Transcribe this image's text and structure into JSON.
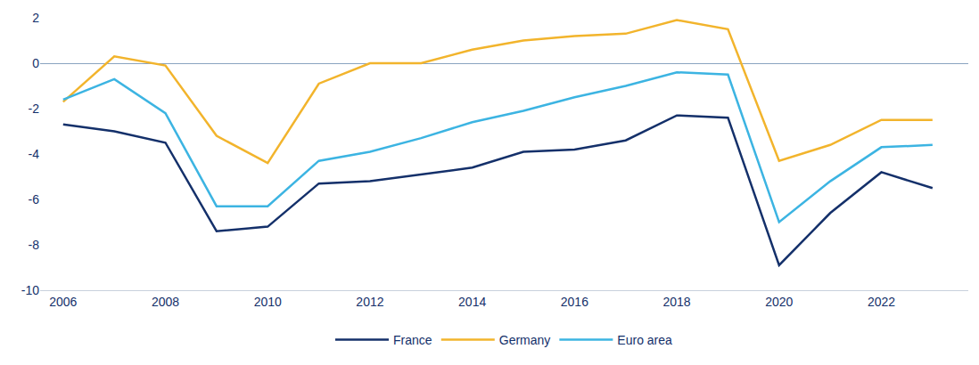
{
  "chart_data": {
    "type": "line",
    "x": [
      2006,
      2007,
      2008,
      2009,
      2010,
      2011,
      2012,
      2013,
      2014,
      2015,
      2016,
      2017,
      2018,
      2019,
      2020,
      2021,
      2022,
      2023
    ],
    "series": [
      {
        "name": "France",
        "color": "#14306a",
        "values": [
          -2.7,
          -3.0,
          -3.5,
          -7.4,
          -7.2,
          -5.3,
          -5.2,
          -4.9,
          -4.6,
          -3.9,
          -3.8,
          -3.4,
          -2.3,
          -2.4,
          -8.9,
          -6.6,
          -4.8,
          -5.5
        ]
      },
      {
        "name": "Germany",
        "color": "#f2b42c",
        "values": [
          -1.7,
          0.3,
          -0.1,
          -3.2,
          -4.4,
          -0.9,
          0.0,
          0.0,
          0.6,
          1.0,
          1.2,
          1.3,
          1.9,
          1.5,
          -4.3,
          -3.6,
          -2.5,
          -2.5
        ]
      },
      {
        "name": "Euro area",
        "color": "#3cb4e2",
        "values": [
          -1.6,
          -0.7,
          -2.2,
          -6.3,
          -6.3,
          -4.3,
          -3.9,
          -3.3,
          -2.6,
          -2.1,
          -1.5,
          -1.0,
          -0.4,
          -0.5,
          -7.0,
          -5.2,
          -3.7,
          -3.6
        ]
      }
    ],
    "xlim": [
      2005.55,
      2023.7
    ],
    "xticks": [
      2006,
      2008,
      2010,
      2012,
      2014,
      2016,
      2018,
      2020,
      2022
    ],
    "ylim": [
      -10,
      2
    ],
    "yticks": [
      -10,
      -8,
      -6,
      -4,
      -2,
      0,
      2
    ],
    "grid": false,
    "legend": "bottom"
  }
}
